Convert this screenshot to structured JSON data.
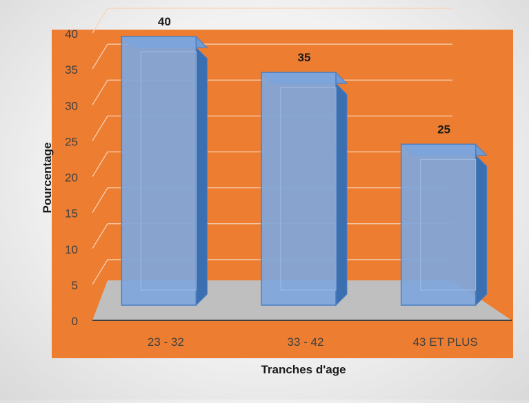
{
  "chart_data": {
    "type": "bar",
    "title": "",
    "categories": [
      "23 - 32",
      "33 - 42",
      "43 ET PLUS"
    ],
    "values": [
      40,
      35,
      25
    ],
    "data_labels": [
      "40",
      "35",
      "25"
    ],
    "xlabel": "Tranches d'age",
    "ylabel": "Pourcentage",
    "ylim": [
      0,
      40
    ],
    "y_ticks": [
      "0",
      "5",
      "10",
      "15",
      "20",
      "25",
      "30",
      "35",
      "40"
    ],
    "grid": true,
    "legend": "none",
    "style": "3d-column",
    "colors": {
      "plot_background": "#ED7D31",
      "floor": "#BFBFBF",
      "bar": "#7EA6DB",
      "bar_edge": "#4A7EC4",
      "gridline": "#F7D3B8"
    }
  }
}
